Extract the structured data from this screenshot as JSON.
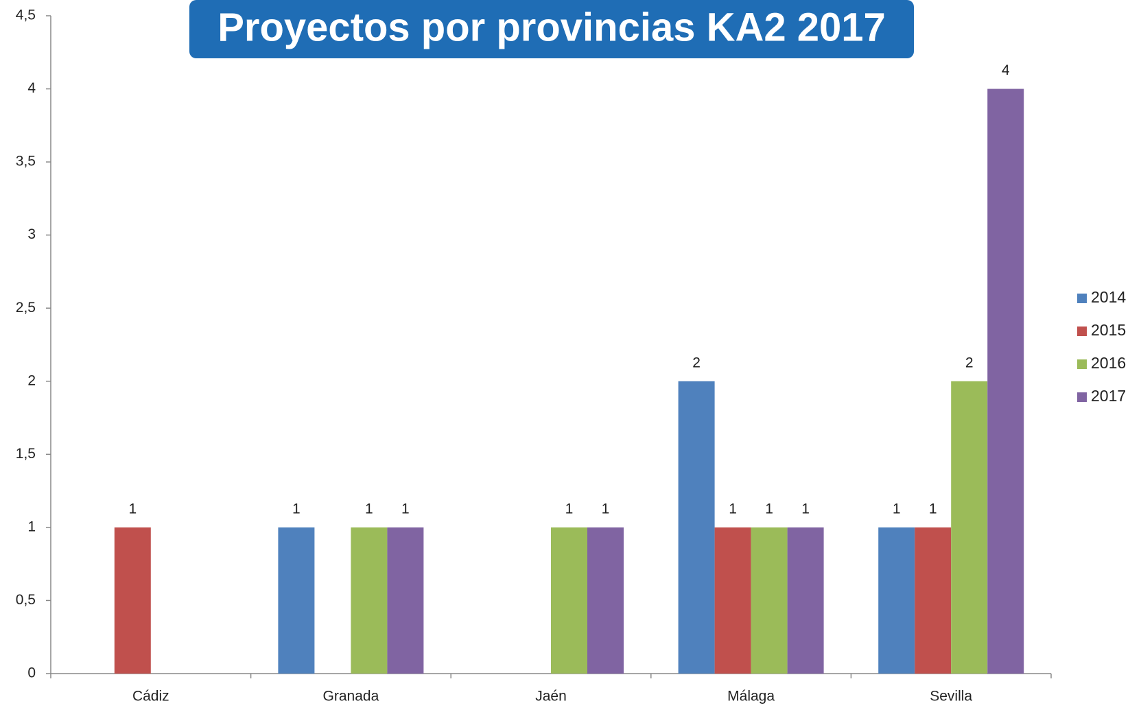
{
  "chart_data": {
    "type": "bar",
    "title": "Proyectos por provincias KA2 2017",
    "categories": [
      "Cádiz",
      "Granada",
      "Jaén",
      "Málaga",
      "Sevilla"
    ],
    "series": [
      {
        "name": "2014",
        "color": "#4f81bd",
        "values": [
          null,
          1,
          null,
          2,
          1
        ]
      },
      {
        "name": "2015",
        "color": "#c0504d",
        "values": [
          1,
          null,
          null,
          1,
          1
        ]
      },
      {
        "name": "2016",
        "color": "#9bbb59",
        "values": [
          null,
          1,
          1,
          1,
          2
        ]
      },
      {
        "name": "2017",
        "color": "#8064a2",
        "values": [
          null,
          1,
          1,
          1,
          4
        ]
      }
    ],
    "ylim": [
      0,
      4.5
    ],
    "yticks": [
      0,
      {
        "value": 0.5,
        "label": "0,5"
      },
      1,
      {
        "value": 1.5,
        "label": "1,5"
      },
      2,
      {
        "value": 2.5,
        "label": "2,5"
      },
      3,
      {
        "value": 3.5,
        "label": "3,5"
      },
      4,
      {
        "value": 4.5,
        "label": "4,5"
      }
    ],
    "legend": "right"
  }
}
